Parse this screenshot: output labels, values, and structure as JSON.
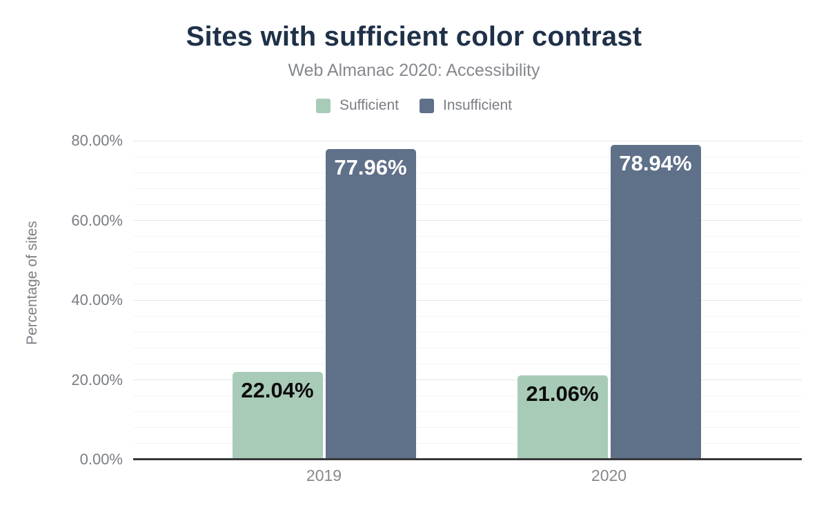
{
  "title": "Sites with sufficient color contrast",
  "subtitle": "Web Almanac 2020: Accessibility",
  "legend": {
    "items": [
      {
        "label": "Sufficient",
        "color": "#a8cbb8"
      },
      {
        "label": "Insufficient",
        "color": "#5f7089"
      }
    ]
  },
  "colors": {
    "sufficient": "#a8cbb8",
    "insufficient": "#5f7089",
    "title_text": "#1e3148",
    "axis_text": "#797d83",
    "axis_line": "#363738"
  },
  "chart_data": {
    "type": "bar",
    "categories": [
      "2019",
      "2020"
    ],
    "series": [
      {
        "name": "Sufficient",
        "color": "#a8cbb8",
        "values": [
          22.04,
          21.06
        ],
        "data_labels": [
          "22.04%",
          "21.06%"
        ],
        "label_color": "#0b0b0b"
      },
      {
        "name": "Insufficient",
        "color": "#5f7089",
        "values": [
          77.96,
          78.94
        ],
        "data_labels": [
          "77.96%",
          "78.94%"
        ],
        "label_color": "#ffffff"
      }
    ],
    "title": "Sites with sufficient color contrast",
    "subtitle": "Web Almanac 2020: Accessibility",
    "xlabel": "",
    "ylabel": "Percentage of sites",
    "yticks": [
      {
        "value": 0,
        "label": "0.00%"
      },
      {
        "value": 20,
        "label": "20.00%"
      },
      {
        "value": 40,
        "label": "40.00%"
      },
      {
        "value": 60,
        "label": "60.00%"
      },
      {
        "value": 80,
        "label": "80.00%"
      }
    ],
    "ylim": [
      0,
      84
    ],
    "grid": "horizontal, major every 20% with minor lines every 4%",
    "legend_position": "top"
  }
}
